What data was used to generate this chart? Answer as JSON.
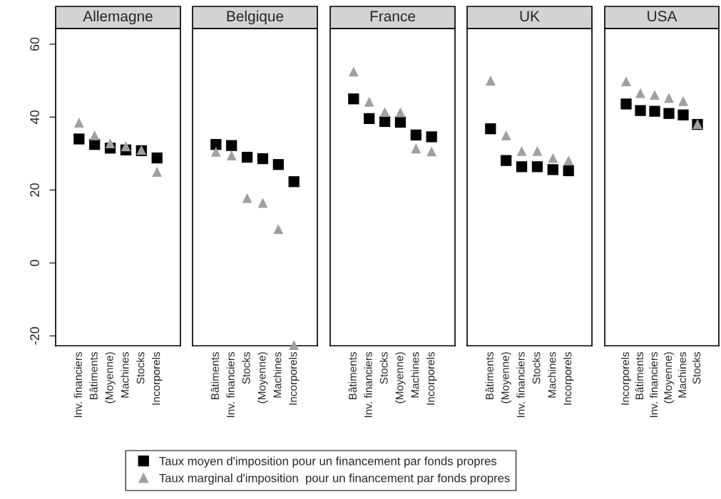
{
  "chart_data": [
    {
      "type": "scatter",
      "title": "Allemagne",
      "categories": [
        "Inv. financiers",
        "Bâtiments",
        "(Moyenne)",
        "Machines",
        "Stocks",
        "Incorporels"
      ],
      "ylim": [
        -22.7,
        64.3
      ],
      "yticks": [
        -20,
        0,
        20,
        40,
        60
      ],
      "grid": false,
      "legend": "bottom",
      "series": [
        {
          "name": "Taux moyen d'imposition pour un financement par fonds propres",
          "color": "#000000",
          "marker": "square",
          "values": [
            34,
            32.5,
            31.5,
            31,
            30.8,
            28.8
          ]
        },
        {
          "name": "Taux marginal d'imposition  pour un financement par fonds propres",
          "color": "#a0a0a0",
          "marker": "triangle",
          "values": [
            38.5,
            35,
            32.8,
            32,
            31,
            25
          ]
        }
      ]
    },
    {
      "type": "scatter",
      "title": "Belgique",
      "categories": [
        "Bâtiments",
        "Inv. financiers",
        "Stocks",
        "(Moyenne)",
        "Machines",
        "Incorporels"
      ],
      "ylim": [
        -22.7,
        64.3
      ],
      "tick_labels": "x",
      "series": [
        {
          "color": "#000000",
          "marker": "square",
          "values": [
            32.5,
            32.2,
            29,
            28.6,
            27,
            22.3
          ]
        },
        {
          "color": "#a0a0a0",
          "marker": "triangle",
          "values": [
            30.5,
            29.5,
            17.8,
            16.5,
            9.3,
            -22.5
          ]
        }
      ]
    },
    {
      "type": "scatter",
      "title": "France",
      "categories": [
        "Bâtiments",
        "Inv. financiers",
        "Stocks",
        "(Moyenne)",
        "Machines",
        "Incorporels"
      ],
      "ylim": [
        -22.7,
        64.3
      ],
      "tick_labels": "x",
      "series": [
        {
          "color": "#000000",
          "marker": "square",
          "values": [
            45,
            39.6,
            38.8,
            38.6,
            35.1,
            34.6
          ]
        },
        {
          "color": "#a0a0a0",
          "marker": "triangle",
          "values": [
            52.5,
            44.2,
            41.4,
            41.3,
            31.4,
            30.6
          ]
        }
      ]
    },
    {
      "type": "scatter",
      "title": "UK",
      "categories": [
        "Bâtiments",
        "(Moyenne)",
        "Inv. financiers",
        "Stocks",
        "Machines",
        "Incorporels"
      ],
      "ylim": [
        -22.7,
        64.3
      ],
      "tick_labels": "x",
      "series": [
        {
          "color": "#000000",
          "marker": "square",
          "values": [
            36.8,
            28.1,
            26.4,
            26.4,
            25.6,
            25.3
          ]
        },
        {
          "color": "#a0a0a0",
          "marker": "triangle",
          "values": [
            50,
            35,
            30.7,
            30.7,
            28.8,
            28.1
          ]
        }
      ]
    },
    {
      "type": "scatter",
      "title": "USA",
      "categories": [
        "Incorporels",
        "Bâtiments",
        "Inv. financiers",
        "(Moyenne)",
        "Machines",
        "Stocks"
      ],
      "ylim": [
        -22.7,
        64.3
      ],
      "tick_labels": "x",
      "series": [
        {
          "color": "#000000",
          "marker": "square",
          "values": [
            43.6,
            41.8,
            41.6,
            41,
            40.6,
            38
          ]
        },
        {
          "color": "#a0a0a0",
          "marker": "triangle",
          "values": [
            49.8,
            46.6,
            46.1,
            45.3,
            44.4,
            38.1
          ]
        }
      ]
    }
  ]
}
